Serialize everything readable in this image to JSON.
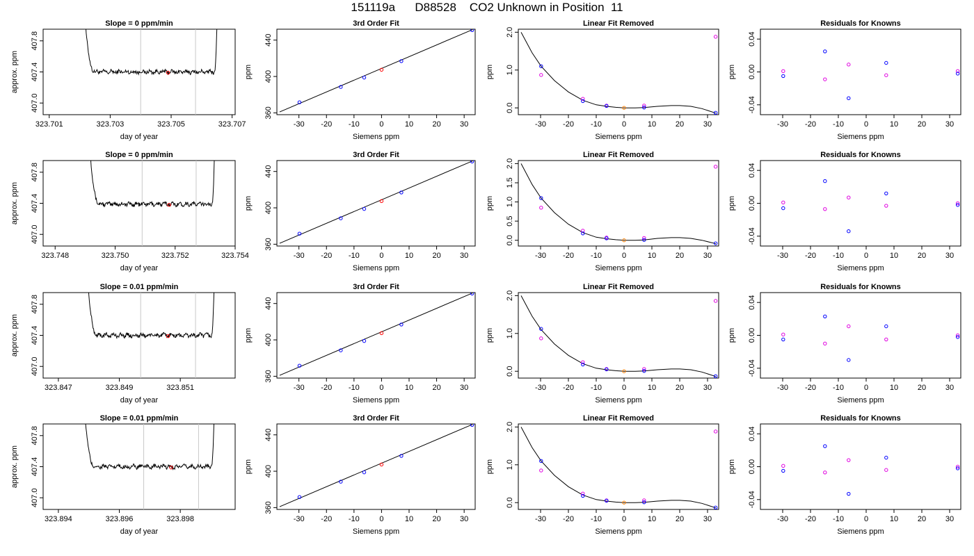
{
  "figure": {
    "title": "151119a      D88528    CO2 Unknown in Position  11"
  },
  "colors": {
    "trace": "#000000",
    "marker_current": "#ff0000",
    "window_line": "#c8c8c8",
    "known_primary": "#0000ff",
    "known_secondary": "#e000e0",
    "unknown_point": "#ff8000"
  },
  "labels": {
    "trace": {
      "xlabel": "day of year",
      "ylabel": "approx. ppm"
    },
    "fit": {
      "title": "3rd Order Fit",
      "xlabel": "Siemens ppm",
      "ylabel": "ppm"
    },
    "lin": {
      "title": "Linear Fit Removed",
      "xlabel": "Siemens ppm",
      "ylabel": "ppm"
    },
    "res": {
      "title": "Residuals for Knowns",
      "xlabel": "Siemens ppm",
      "ylabel": "ppm"
    }
  },
  "chart_data": [
    {
      "type": "line",
      "panel": "trace",
      "row": 1,
      "title": "Slope =  0  ppm/min",
      "xlabel": "day of year",
      "ylabel": "approx. ppm",
      "xlim": [
        323.7008,
        323.7071
      ],
      "ylim": [
        406.85,
        407.95
      ],
      "x_ticks": [
        "323.701",
        "323.703",
        "323.705",
        "323.707"
      ],
      "y_ticks": [
        "407.0",
        "407.4",
        "407.8"
      ],
      "window": [
        323.704,
        323.7058
      ],
      "current_point": [
        323.7049,
        407.39
      ],
      "plateau": 407.4,
      "x_start": 323.702,
      "x_end": 323.7066
    },
    {
      "type": "line",
      "panel": "trace",
      "row": 2,
      "title": "Slope =  0  ppm/min",
      "xlabel": "day of year",
      "ylabel": "approx. ppm",
      "xlim": [
        323.7476,
        323.754
      ],
      "ylim": [
        406.85,
        407.95
      ],
      "x_ticks": [
        "323.748",
        "323.750",
        "323.752",
        "323.754"
      ],
      "y_ticks": [
        "407.0",
        "407.4",
        "407.8"
      ],
      "window": [
        323.7509,
        323.7527
      ],
      "current_point": [
        323.7518,
        407.38
      ],
      "plateau": 407.39,
      "x_start": 323.749,
      "x_end": 323.7534
    },
    {
      "type": "line",
      "panel": "trace",
      "row": 3,
      "title": "Slope =  0.01  ppm/min",
      "xlabel": "day of year",
      "ylabel": "approx. ppm",
      "xlim": [
        323.8465,
        323.8528
      ],
      "ylim": [
        406.85,
        407.95
      ],
      "x_ticks": [
        "323.847",
        "323.849",
        "323.851"
      ],
      "y_ticks": [
        "407.0",
        "407.4",
        "407.8"
      ],
      "window": [
        323.8497,
        323.8515
      ],
      "current_point": [
        323.8506,
        407.39
      ],
      "plateau": 407.4,
      "x_start": 323.8478,
      "x_end": 323.8522
    },
    {
      "type": "line",
      "panel": "trace",
      "row": 4,
      "title": "Slope =  0.01  ppm/min",
      "xlabel": "day of year",
      "ylabel": "approx. ppm",
      "xlim": [
        323.8935,
        323.8998
      ],
      "ylim": [
        406.85,
        407.95
      ],
      "x_ticks": [
        "323.894",
        "323.896",
        "323.898"
      ],
      "y_ticks": [
        "407.0",
        "407.4",
        "407.8"
      ],
      "window": [
        323.8968,
        323.8986
      ],
      "current_point": [
        323.8977,
        407.39
      ],
      "plateau": 407.4,
      "x_start": 323.8947,
      "x_end": 323.8992
    },
    {
      "type": "scatter",
      "panel": "fit",
      "row": 1,
      "title": "3rd Order Fit",
      "xlabel": "Siemens ppm",
      "ylabel": "ppm",
      "xlim": [
        -38,
        34
      ],
      "ylim": [
        358,
        452
      ],
      "x_ticks": [
        -30,
        -20,
        -10,
        0,
        10,
        20,
        30
      ],
      "y_ticks": [
        360,
        400,
        440
      ],
      "knowns": [
        [
          -29.8,
          371.6
        ],
        [
          -14.8,
          388.5
        ],
        [
          -6.3,
          398.8
        ],
        [
          7.2,
          416.9
        ],
        [
          32.9,
          451.0
        ]
      ],
      "unknown": [
        0.0,
        407.4
      ],
      "fit_line": [
        [
          -37,
          361.0
        ],
        [
          33,
          451.5
        ]
      ]
    },
    {
      "type": "scatter",
      "panel": "fit",
      "row": 2,
      "title": "3rd Order Fit",
      "xlabel": "Siemens ppm",
      "ylabel": "ppm",
      "xlim": [
        -38,
        34
      ],
      "ylim": [
        358,
        452
      ],
      "x_ticks": [
        -30,
        -20,
        -10,
        0,
        10,
        20,
        30
      ],
      "y_ticks": [
        360,
        400,
        440
      ],
      "knowns": [
        [
          -29.8,
          371.6
        ],
        [
          -14.8,
          388.5
        ],
        [
          -6.3,
          398.8
        ],
        [
          7.2,
          416.9
        ],
        [
          32.9,
          451.0
        ]
      ],
      "unknown": [
        0.0,
        407.4
      ],
      "fit_line": [
        [
          -37,
          361.0
        ],
        [
          33,
          451.5
        ]
      ]
    },
    {
      "type": "scatter",
      "panel": "fit",
      "row": 3,
      "title": "3rd Order Fit",
      "xlabel": "Siemens ppm",
      "ylabel": "ppm",
      "xlim": [
        -38,
        34
      ],
      "ylim": [
        358,
        452
      ],
      "x_ticks": [
        -30,
        -20,
        -10,
        0,
        10,
        20,
        30
      ],
      "y_ticks": [
        360,
        400,
        440
      ],
      "knowns": [
        [
          -29.8,
          371.6
        ],
        [
          -14.8,
          388.5
        ],
        [
          -6.3,
          398.8
        ],
        [
          7.2,
          416.9
        ],
        [
          32.9,
          451.0
        ]
      ],
      "unknown": [
        0.0,
        407.4
      ],
      "fit_line": [
        [
          -37,
          361.0
        ],
        [
          33,
          451.5
        ]
      ]
    },
    {
      "type": "scatter",
      "panel": "fit",
      "row": 4,
      "title": "3rd Order Fit",
      "xlabel": "Siemens ppm",
      "ylabel": "ppm",
      "xlim": [
        -38,
        34
      ],
      "ylim": [
        358,
        452
      ],
      "x_ticks": [
        -30,
        -20,
        -10,
        0,
        10,
        20,
        30
      ],
      "y_ticks": [
        360,
        400,
        440
      ],
      "knowns": [
        [
          -29.8,
          371.6
        ],
        [
          -14.8,
          388.5
        ],
        [
          -6.3,
          398.8
        ],
        [
          7.2,
          416.9
        ],
        [
          32.9,
          451.0
        ]
      ],
      "unknown": [
        0.0,
        407.4
      ],
      "fit_line": [
        [
          -37,
          361.0
        ],
        [
          33,
          451.5
        ]
      ]
    },
    {
      "type": "scatter",
      "panel": "lin",
      "row": 1,
      "title": "Linear Fit Removed",
      "xlabel": "Siemens ppm",
      "ylabel": "ppm",
      "xlim": [
        -38,
        34
      ],
      "ylim": [
        -0.18,
        2.08
      ],
      "x_ticks": [
        -30,
        -20,
        -10,
        0,
        10,
        20,
        30
      ],
      "y_ticks": [
        "0.0",
        "1.0",
        "2.0"
      ],
      "knowns_primary": [
        [
          -29.8,
          1.1
        ],
        [
          -14.8,
          0.18
        ],
        [
          -6.3,
          0.05
        ],
        [
          7.2,
          0.01
        ],
        [
          32.9,
          -0.13
        ]
      ],
      "knowns_secondary": [
        [
          -29.8,
          0.87
        ],
        [
          -14.8,
          0.24
        ],
        [
          -6.3,
          0.06
        ],
        [
          7.2,
          0.06
        ],
        [
          32.9,
          1.88
        ]
      ],
      "unknown": [
        0.0,
        0.0
      ],
      "curve": [
        [
          -37,
          2.0
        ],
        [
          -33,
          1.45
        ],
        [
          -29.8,
          1.1
        ],
        [
          -25,
          0.72
        ],
        [
          -20,
          0.42
        ],
        [
          -14.8,
          0.2
        ],
        [
          -10,
          0.08
        ],
        [
          -6.3,
          0.04
        ],
        [
          -3,
          0.015
        ],
        [
          0,
          0.0
        ],
        [
          4,
          0.0
        ],
        [
          7.2,
          0.01
        ],
        [
          12,
          0.04
        ],
        [
          17,
          0.06
        ],
        [
          20,
          0.06
        ],
        [
          24,
          0.04
        ],
        [
          28,
          -0.02
        ],
        [
          33,
          -0.14
        ]
      ]
    },
    {
      "type": "scatter",
      "panel": "lin",
      "row": 2,
      "title": "Linear Fit Removed",
      "xlabel": "Siemens ppm",
      "ylabel": "ppm",
      "xlim": [
        -38,
        34
      ],
      "ylim": [
        -0.15,
        2.08
      ],
      "x_ticks": [
        -30,
        -20,
        -10,
        0,
        10,
        20,
        30
      ],
      "y_ticks": [
        "0.0",
        "0.5",
        "1.0",
        "1.5",
        "2.0"
      ],
      "knowns_primary": [
        [
          -29.8,
          1.1
        ],
        [
          -14.8,
          0.18
        ],
        [
          -6.3,
          0.05
        ],
        [
          7.2,
          0.01
        ],
        [
          32.9,
          -0.08
        ]
      ],
      "knowns_secondary": [
        [
          -29.8,
          0.85
        ],
        [
          -14.8,
          0.25
        ],
        [
          -6.3,
          0.07
        ],
        [
          7.2,
          0.06
        ],
        [
          32.9,
          1.92
        ]
      ],
      "unknown": [
        0.0,
        0.0
      ],
      "curve": [
        [
          -37,
          2.0
        ],
        [
          -33,
          1.45
        ],
        [
          -29.8,
          1.1
        ],
        [
          -25,
          0.72
        ],
        [
          -20,
          0.42
        ],
        [
          -14.8,
          0.2
        ],
        [
          -10,
          0.08
        ],
        [
          -6.3,
          0.04
        ],
        [
          -3,
          0.015
        ],
        [
          0,
          0.0
        ],
        [
          4,
          0.0
        ],
        [
          7.2,
          0.01
        ],
        [
          12,
          0.05
        ],
        [
          17,
          0.07
        ],
        [
          20,
          0.07
        ],
        [
          24,
          0.05
        ],
        [
          28,
          0.0
        ],
        [
          33,
          -0.09
        ]
      ]
    },
    {
      "type": "scatter",
      "panel": "lin",
      "row": 3,
      "title": "Linear Fit Removed",
      "xlabel": "Siemens ppm",
      "ylabel": "ppm",
      "xlim": [
        -38,
        34
      ],
      "ylim": [
        -0.18,
        2.08
      ],
      "x_ticks": [
        -30,
        -20,
        -10,
        0,
        10,
        20,
        30
      ],
      "y_ticks": [
        "0.0",
        "1.0",
        "2.0"
      ],
      "knowns_primary": [
        [
          -29.8,
          1.12
        ],
        [
          -14.8,
          0.18
        ],
        [
          -6.3,
          0.05
        ],
        [
          7.2,
          0.01
        ],
        [
          32.9,
          -0.13
        ]
      ],
      "knowns_secondary": [
        [
          -29.8,
          0.87
        ],
        [
          -14.8,
          0.24
        ],
        [
          -6.3,
          0.06
        ],
        [
          7.2,
          0.06
        ],
        [
          32.9,
          1.86
        ]
      ],
      "unknown": [
        0.0,
        0.0
      ],
      "curve": [
        [
          -37,
          2.0
        ],
        [
          -33,
          1.45
        ],
        [
          -29.8,
          1.1
        ],
        [
          -25,
          0.72
        ],
        [
          -20,
          0.42
        ],
        [
          -14.8,
          0.2
        ],
        [
          -10,
          0.08
        ],
        [
          -6.3,
          0.04
        ],
        [
          -3,
          0.015
        ],
        [
          0,
          0.0
        ],
        [
          4,
          0.0
        ],
        [
          7.2,
          0.01
        ],
        [
          12,
          0.04
        ],
        [
          17,
          0.06
        ],
        [
          20,
          0.06
        ],
        [
          24,
          0.04
        ],
        [
          28,
          -0.02
        ],
        [
          33,
          -0.14
        ]
      ]
    },
    {
      "type": "scatter",
      "panel": "lin",
      "row": 4,
      "title": "Linear Fit Removed",
      "xlabel": "Siemens ppm",
      "ylabel": "ppm",
      "xlim": [
        -38,
        34
      ],
      "ylim": [
        -0.18,
        2.08
      ],
      "x_ticks": [
        -30,
        -20,
        -10,
        0,
        10,
        20,
        30
      ],
      "y_ticks": [
        "0.0",
        "1.0",
        "2.0"
      ],
      "knowns_primary": [
        [
          -29.8,
          1.1
        ],
        [
          -14.8,
          0.18
        ],
        [
          -6.3,
          0.05
        ],
        [
          7.2,
          0.01
        ],
        [
          32.9,
          -0.13
        ]
      ],
      "knowns_secondary": [
        [
          -29.8,
          0.85
        ],
        [
          -14.8,
          0.24
        ],
        [
          -6.3,
          0.06
        ],
        [
          7.2,
          0.06
        ],
        [
          32.9,
          1.88
        ]
      ],
      "unknown": [
        0.0,
        0.0
      ],
      "curve": [
        [
          -37,
          2.0
        ],
        [
          -33,
          1.45
        ],
        [
          -29.8,
          1.1
        ],
        [
          -25,
          0.72
        ],
        [
          -20,
          0.42
        ],
        [
          -14.8,
          0.2
        ],
        [
          -10,
          0.08
        ],
        [
          -6.3,
          0.04
        ],
        [
          -3,
          0.015
        ],
        [
          0,
          0.0
        ],
        [
          4,
          0.0
        ],
        [
          7.2,
          0.01
        ],
        [
          12,
          0.04
        ],
        [
          17,
          0.06
        ],
        [
          20,
          0.06
        ],
        [
          24,
          0.04
        ],
        [
          28,
          -0.02
        ],
        [
          33,
          -0.14
        ]
      ]
    },
    {
      "type": "scatter",
      "panel": "res",
      "row": 1,
      "title": "Residuals for Knowns",
      "xlabel": "Siemens ppm",
      "ylabel": "ppm",
      "xlim": [
        -38,
        34
      ],
      "ylim": [
        -0.052,
        0.052
      ],
      "x_ticks": [
        -30,
        -20,
        -10,
        0,
        10,
        20,
        30
      ],
      "y_ticks": [
        "-0.04",
        "0.00",
        "0.04"
      ],
      "knowns_primary": [
        [
          -29.8,
          -0.005
        ],
        [
          -14.8,
          0.025
        ],
        [
          -6.3,
          -0.032
        ],
        [
          7.2,
          0.011
        ],
        [
          32.9,
          -0.002
        ]
      ],
      "knowns_secondary": [
        [
          -29.8,
          0.001
        ],
        [
          -14.8,
          -0.009
        ],
        [
          -6.3,
          0.009
        ],
        [
          7.2,
          -0.004
        ],
        [
          32.9,
          0.001
        ]
      ]
    },
    {
      "type": "scatter",
      "panel": "res",
      "row": 2,
      "title": "Residuals for Knowns",
      "xlabel": "Siemens ppm",
      "ylabel": "ppm",
      "xlim": [
        -38,
        34
      ],
      "ylim": [
        -0.052,
        0.052
      ],
      "x_ticks": [
        -30,
        -20,
        -10,
        0,
        10,
        20,
        30
      ],
      "y_ticks": [
        "-0.04",
        "0.00",
        "0.04"
      ],
      "knowns_primary": [
        [
          -29.8,
          -0.006
        ],
        [
          -14.8,
          0.027
        ],
        [
          -6.3,
          -0.034
        ],
        [
          7.2,
          0.012
        ],
        [
          32.9,
          -0.002
        ]
      ],
      "knowns_secondary": [
        [
          -29.8,
          0.001
        ],
        [
          -14.8,
          -0.007
        ],
        [
          -6.3,
          0.007
        ],
        [
          7.2,
          -0.003
        ],
        [
          32.9,
          0.0
        ]
      ]
    },
    {
      "type": "scatter",
      "panel": "res",
      "row": 3,
      "title": "Residuals for Knowns",
      "xlabel": "Siemens ppm",
      "ylabel": "ppm",
      "xlim": [
        -38,
        34
      ],
      "ylim": [
        -0.052,
        0.052
      ],
      "x_ticks": [
        -30,
        -20,
        -10,
        0,
        10,
        20,
        30
      ],
      "y_ticks": [
        "-0.04",
        "0.00",
        "0.04"
      ],
      "knowns_primary": [
        [
          -29.8,
          -0.005
        ],
        [
          -14.8,
          0.023
        ],
        [
          -6.3,
          -0.03
        ],
        [
          7.2,
          0.011
        ],
        [
          32.9,
          -0.002
        ]
      ],
      "knowns_secondary": [
        [
          -29.8,
          0.001
        ],
        [
          -14.8,
          -0.01
        ],
        [
          -6.3,
          0.011
        ],
        [
          7.2,
          -0.005
        ],
        [
          32.9,
          0.0
        ]
      ]
    },
    {
      "type": "scatter",
      "panel": "res",
      "row": 4,
      "title": "Residuals for Knowns",
      "xlabel": "Siemens ppm",
      "ylabel": "ppm",
      "xlim": [
        -38,
        34
      ],
      "ylim": [
        -0.052,
        0.052
      ],
      "x_ticks": [
        -30,
        -20,
        -10,
        0,
        10,
        20,
        30
      ],
      "y_ticks": [
        "-0.04",
        "0.00",
        "0.04"
      ],
      "knowns_primary": [
        [
          -29.8,
          -0.005
        ],
        [
          -14.8,
          0.025
        ],
        [
          -6.3,
          -0.033
        ],
        [
          7.2,
          0.011
        ],
        [
          32.9,
          -0.002
        ]
      ],
      "knowns_secondary": [
        [
          -29.8,
          0.001
        ],
        [
          -14.8,
          -0.007
        ],
        [
          -6.3,
          0.008
        ],
        [
          7.2,
          -0.004
        ],
        [
          32.9,
          0.0
        ]
      ]
    }
  ]
}
